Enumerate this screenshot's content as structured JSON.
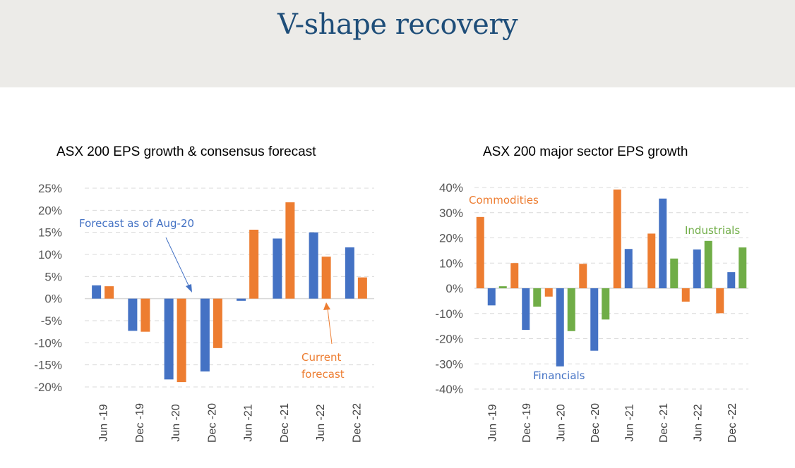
{
  "header": {
    "title": "V-shape recovery",
    "background": "#ecebe8",
    "title_color": "#1f4e79"
  },
  "chart_data": [
    {
      "type": "bar",
      "title": "ASX 200 EPS growth & consensus forecast",
      "xlabel": "",
      "ylabel": "",
      "categories": [
        "Jun -19",
        "Dec -19",
        "Jun -20",
        "Dec -20",
        "Jun -21",
        "Dec -21",
        "Jun -22",
        "Dec -22"
      ],
      "series": [
        {
          "name": "Forecast as of Aug-20",
          "color": "#4472c4",
          "values": [
            3.0,
            -7.3,
            -18.3,
            -16.5,
            -0.5,
            13.6,
            15.0,
            11.6
          ]
        },
        {
          "name": "Current forecast",
          "color": "#ed7d31",
          "values": [
            2.8,
            -7.5,
            -18.9,
            -11.2,
            15.6,
            21.8,
            9.5,
            4.8
          ]
        }
      ],
      "ylim": [
        -20,
        25
      ],
      "yticks": [
        25,
        20,
        15,
        10,
        5,
        0,
        -5,
        -10,
        -15,
        -20
      ],
      "ytick_labels": [
        "25%",
        "20%",
        "15%",
        "10%",
        "5%",
        "0%",
        "-5%",
        "-10%",
        "-15%",
        "-20%"
      ],
      "grid": true,
      "annotations": [
        {
          "text": "Forecast as of Aug-20",
          "color": "#4472c4",
          "points_to": "Dec -20"
        },
        {
          "text_lines": [
            "Current",
            "forecast"
          ],
          "color": "#ed7d31",
          "points_to": "Jun -22"
        }
      ]
    },
    {
      "type": "bar",
      "title": "ASX 200 major sector EPS growth",
      "xlabel": "",
      "ylabel": "",
      "categories": [
        "Jun -19",
        "Dec -19",
        "Jun -20",
        "Dec -20",
        "Jun -21",
        "Dec -21",
        "Jun -22",
        "Dec -22"
      ],
      "series": [
        {
          "name": "Commodities",
          "color": "#ed7d31",
          "values": [
            28.3,
            10.0,
            -3.3,
            9.7,
            39.2,
            21.7,
            -5.3,
            -9.9
          ]
        },
        {
          "name": "Financials",
          "color": "#4472c4",
          "values": [
            -6.8,
            -16.5,
            -31.0,
            -24.8,
            15.6,
            35.6,
            15.4,
            6.4
          ]
        },
        {
          "name": "Industrials",
          "color": "#70ad47",
          "values": [
            0.8,
            -7.3,
            -17.0,
            -12.4,
            0.0,
            11.8,
            18.8,
            16.2
          ]
        }
      ],
      "ylim": [
        -40,
        40
      ],
      "yticks": [
        40,
        30,
        20,
        10,
        0,
        -10,
        -20,
        -30,
        -40
      ],
      "ytick_labels": [
        "40%",
        "30%",
        "20%",
        "10%",
        "0%",
        "-10%",
        "-20%",
        "-30%",
        "-40%"
      ],
      "grid": true,
      "annotations": [
        {
          "text": "Commodities",
          "color": "#ed7d31"
        },
        {
          "text": "Financials",
          "color": "#4472c4"
        },
        {
          "text": "Industrials",
          "color": "#70ad47"
        }
      ]
    }
  ]
}
